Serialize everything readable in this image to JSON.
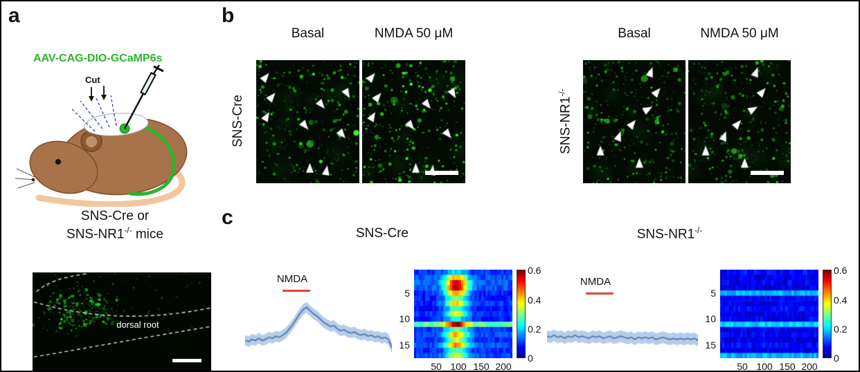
{
  "colors": {
    "green": "#2db52d",
    "trace_line": "#4a79b2",
    "trace_band": "#b6cde8",
    "stim_bar": "#e8413c"
  },
  "panel_a": {
    "label": "a",
    "construct": "AAV-CAG-DIO-GCaMP6s",
    "cut": "Cut",
    "caption1": "SNS-Cre or",
    "caption2_base": "SNS-NR1",
    "caption2_sup": "-/-",
    "caption2_tail": " mice",
    "micrograph_label": "dorsal root"
  },
  "panel_b": {
    "label": "b",
    "col_labels": [
      "Basal",
      "NMDA 50 μM",
      "Basal",
      "NMDA 50 μM"
    ],
    "row1": "SNS-Cre",
    "row2_base": "SNS-NR1",
    "row2_sup": "-/-",
    "arrows": {
      "cre_basal": [
        [
          0.09,
          0.14,
          40
        ],
        [
          0.15,
          0.3,
          40
        ],
        [
          0.1,
          0.46,
          30
        ],
        [
          0.47,
          0.53,
          140
        ],
        [
          0.63,
          0.36,
          140
        ],
        [
          0.88,
          0.27,
          150
        ],
        [
          0.83,
          0.6,
          140
        ],
        [
          0.52,
          0.88,
          0
        ],
        [
          0.68,
          0.9,
          10
        ]
      ],
      "cre_nmda": [
        [
          0.09,
          0.14,
          40
        ],
        [
          0.15,
          0.3,
          40
        ],
        [
          0.1,
          0.46,
          30
        ],
        [
          0.47,
          0.53,
          140
        ],
        [
          0.63,
          0.36,
          140
        ],
        [
          0.88,
          0.27,
          150
        ],
        [
          0.83,
          0.6,
          140
        ],
        [
          0.52,
          0.88,
          0
        ],
        [
          0.68,
          0.9,
          10
        ]
      ],
      "nr1_basal": [
        [
          0.66,
          0.1,
          20
        ],
        [
          0.72,
          0.26,
          40
        ],
        [
          0.63,
          0.4,
          60
        ],
        [
          0.48,
          0.52,
          40
        ],
        [
          0.35,
          0.62,
          20
        ],
        [
          0.17,
          0.74,
          0
        ],
        [
          0.55,
          0.84,
          0
        ]
      ],
      "nr1_nmda": [
        [
          0.66,
          0.1,
          20
        ],
        [
          0.72,
          0.26,
          40
        ],
        [
          0.63,
          0.4,
          60
        ],
        [
          0.48,
          0.52,
          40
        ],
        [
          0.35,
          0.62,
          20
        ],
        [
          0.17,
          0.74,
          0
        ],
        [
          0.55,
          0.84,
          0
        ]
      ]
    }
  },
  "panel_c": {
    "label": "c",
    "left_title": "SNS-Cre",
    "right_title_base": "SNS-NR1",
    "right_title_sup": "-/-"
  },
  "chart_data": [
    {
      "id": "trace-sns-cre",
      "type": "line",
      "title": "SNS-Cre",
      "stim_label": "NMDA",
      "stim_frac": [
        0.24,
        0.4
      ],
      "ylim": [
        -0.12,
        0.45
      ],
      "band": 0.05,
      "values": [
        0.02,
        0.01,
        0.03,
        0.02,
        0.04,
        0.02,
        0.03,
        0.05,
        0.04,
        0.06,
        0.05,
        0.07,
        0.09,
        0.13,
        0.17,
        0.22,
        0.27,
        0.31,
        0.33,
        0.3,
        0.27,
        0.25,
        0.22,
        0.19,
        0.17,
        0.15,
        0.16,
        0.13,
        0.11,
        0.12,
        0.1,
        0.09,
        0.1,
        0.08,
        0.07,
        0.08,
        0.06,
        0.07,
        0.05,
        0.06,
        0.04,
        0.05,
        0.03,
        -0.05
      ]
    },
    {
      "id": "trace-sns-nr1",
      "type": "line",
      "title": "SNS-NR1-/-",
      "stim_label": "NMDA",
      "stim_frac": [
        0.22,
        0.38
      ],
      "ylim": [
        -0.12,
        0.45
      ],
      "band": 0.055,
      "values": [
        0.06,
        0.05,
        0.07,
        0.05,
        0.06,
        0.04,
        0.06,
        0.05,
        0.07,
        0.05,
        0.06,
        0.05,
        0.04,
        0.06,
        0.05,
        0.06,
        0.04,
        0.05,
        0.06,
        0.04,
        0.05,
        0.06,
        0.05,
        0.04,
        0.05,
        0.03,
        0.05,
        0.04,
        0.05,
        0.04,
        0.05,
        0.03,
        0.04,
        0.05,
        0.04,
        0.03,
        0.04,
        0.03,
        0.04,
        0.03,
        0.04,
        0.03,
        0.04,
        0.02
      ]
    },
    {
      "id": "heatmap-sns-cre",
      "type": "heatmap",
      "title": "SNS-Cre",
      "rows": 17,
      "x_max": 220,
      "x_ticks": [
        50,
        100,
        150,
        200
      ],
      "y_ticks": [
        5,
        10,
        15
      ],
      "color_range": [
        0,
        0.6
      ],
      "colorbar_ticks": [
        0.6,
        0.4,
        0.2,
        0
      ],
      "colormap": "jet",
      "response_center": 95,
      "response_sigma": 18,
      "row_params": [
        [
          0.1,
          0.12
        ],
        [
          0.12,
          0.3
        ],
        [
          0.13,
          0.42
        ],
        [
          0.12,
          0.45
        ],
        [
          0.1,
          0.35
        ],
        [
          0.09,
          0.22
        ],
        [
          0.1,
          0.3
        ],
        [
          0.08,
          0.18
        ],
        [
          0.1,
          0.26
        ],
        [
          0.09,
          0.14
        ],
        [
          0.28,
          0.3
        ],
        [
          0.1,
          0.2
        ],
        [
          0.12,
          0.3
        ],
        [
          0.1,
          0.24
        ],
        [
          0.12,
          0.34
        ],
        [
          0.1,
          0.18
        ],
        [
          0.11,
          0.24
        ]
      ]
    },
    {
      "id": "heatmap-sns-nr1",
      "type": "heatmap",
      "title": "SNS-NR1-/-",
      "rows": 17,
      "x_max": 220,
      "x_ticks": [
        50,
        100,
        150,
        200
      ],
      "y_ticks": [
        5,
        10,
        15
      ],
      "color_range": [
        0,
        0.6
      ],
      "colorbar_ticks": [
        0.6,
        0.4,
        0.2,
        0
      ],
      "colormap": "jet",
      "response_center": 95,
      "response_sigma": 18,
      "row_params": [
        [
          0.08,
          0
        ],
        [
          0.06,
          0
        ],
        [
          0.07,
          0
        ],
        [
          0.06,
          0
        ],
        [
          0.18,
          0
        ],
        [
          0.07,
          0
        ],
        [
          0.06,
          0
        ],
        [
          0.08,
          0
        ],
        [
          0.06,
          0
        ],
        [
          0.07,
          0
        ],
        [
          0.2,
          0
        ],
        [
          0.06,
          0
        ],
        [
          0.07,
          0
        ],
        [
          0.06,
          0
        ],
        [
          0.08,
          0
        ],
        [
          0.06,
          0
        ],
        [
          0.18,
          0
        ]
      ]
    }
  ]
}
